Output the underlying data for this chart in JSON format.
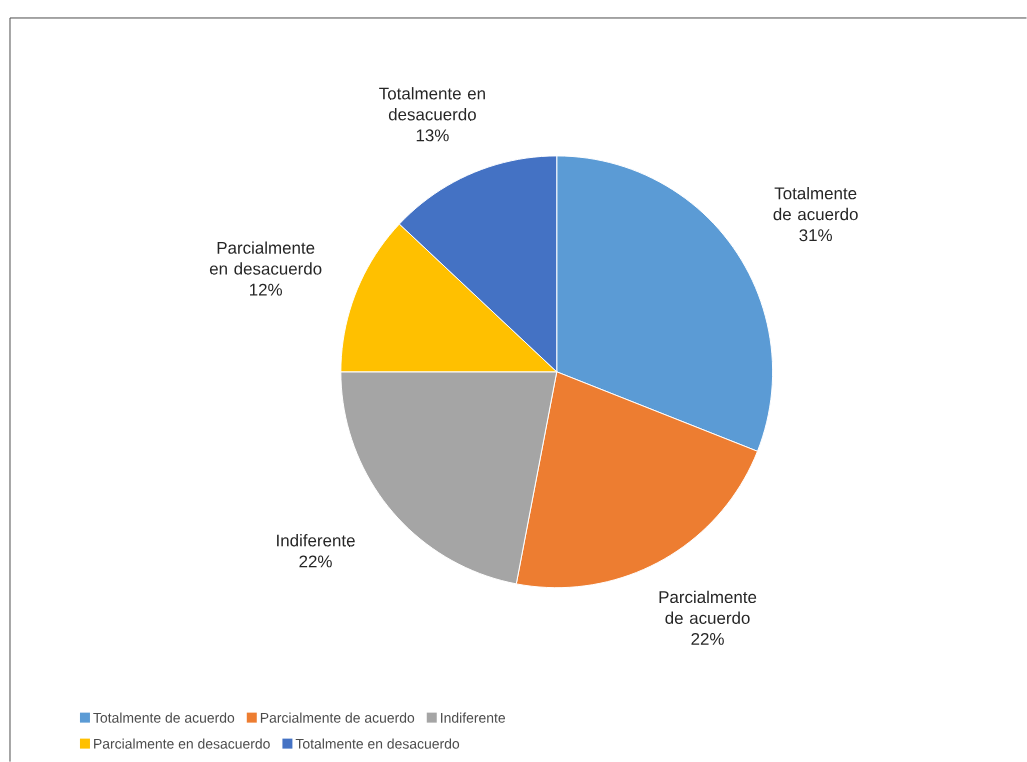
{
  "chart_data": {
    "type": "pie",
    "categories": [
      "Totalmente de acuerdo",
      "Parcialmente de acuerdo",
      "Indiferente",
      "Parcialmente en desacuerdo",
      "Totalmente en desacuerdo"
    ],
    "values": [
      31,
      22,
      22,
      12,
      13
    ],
    "value_labels": [
      "31%",
      "22%",
      "22%",
      "12%",
      "13%"
    ],
    "colors": [
      "#5b9bd5",
      "#ed7d31",
      "#a5a5a5",
      "#ffc000",
      "#4472c4"
    ],
    "legend": "bottom"
  }
}
